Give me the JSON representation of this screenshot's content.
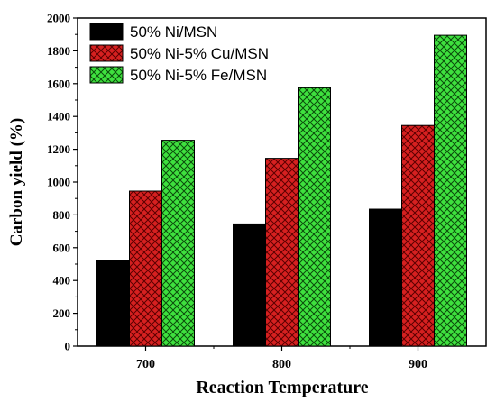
{
  "chart_data": {
    "type": "bar",
    "xlabel": "Reaction Temperature",
    "ylabel": "Carbon yield (%)",
    "categories": [
      "700",
      "800",
      "900"
    ],
    "ylim": [
      0,
      2000
    ],
    "yticks": [
      0,
      200,
      400,
      600,
      800,
      1000,
      1200,
      1400,
      1600,
      1800,
      2000
    ],
    "ytick_labels": [
      "0",
      "200",
      "400",
      "600",
      "800",
      "1000",
      "1200",
      "1400",
      "1600",
      "1800",
      "2000"
    ],
    "grid": false,
    "legend_position": "top-left",
    "series": [
      {
        "name": "50% Ni/MSN",
        "values": [
          520,
          745,
          835
        ],
        "color": "#000000",
        "pattern": "solid"
      },
      {
        "name": "50% Ni-5% Cu/MSN",
        "values": [
          945,
          1145,
          1345
        ],
        "color": "#d62020",
        "pattern": "crosshatch"
      },
      {
        "name": "50% Ni-5% Fe/MSN",
        "values": [
          1255,
          1575,
          1895
        ],
        "color": "#2fd62f",
        "pattern": "crosshatch"
      }
    ]
  }
}
